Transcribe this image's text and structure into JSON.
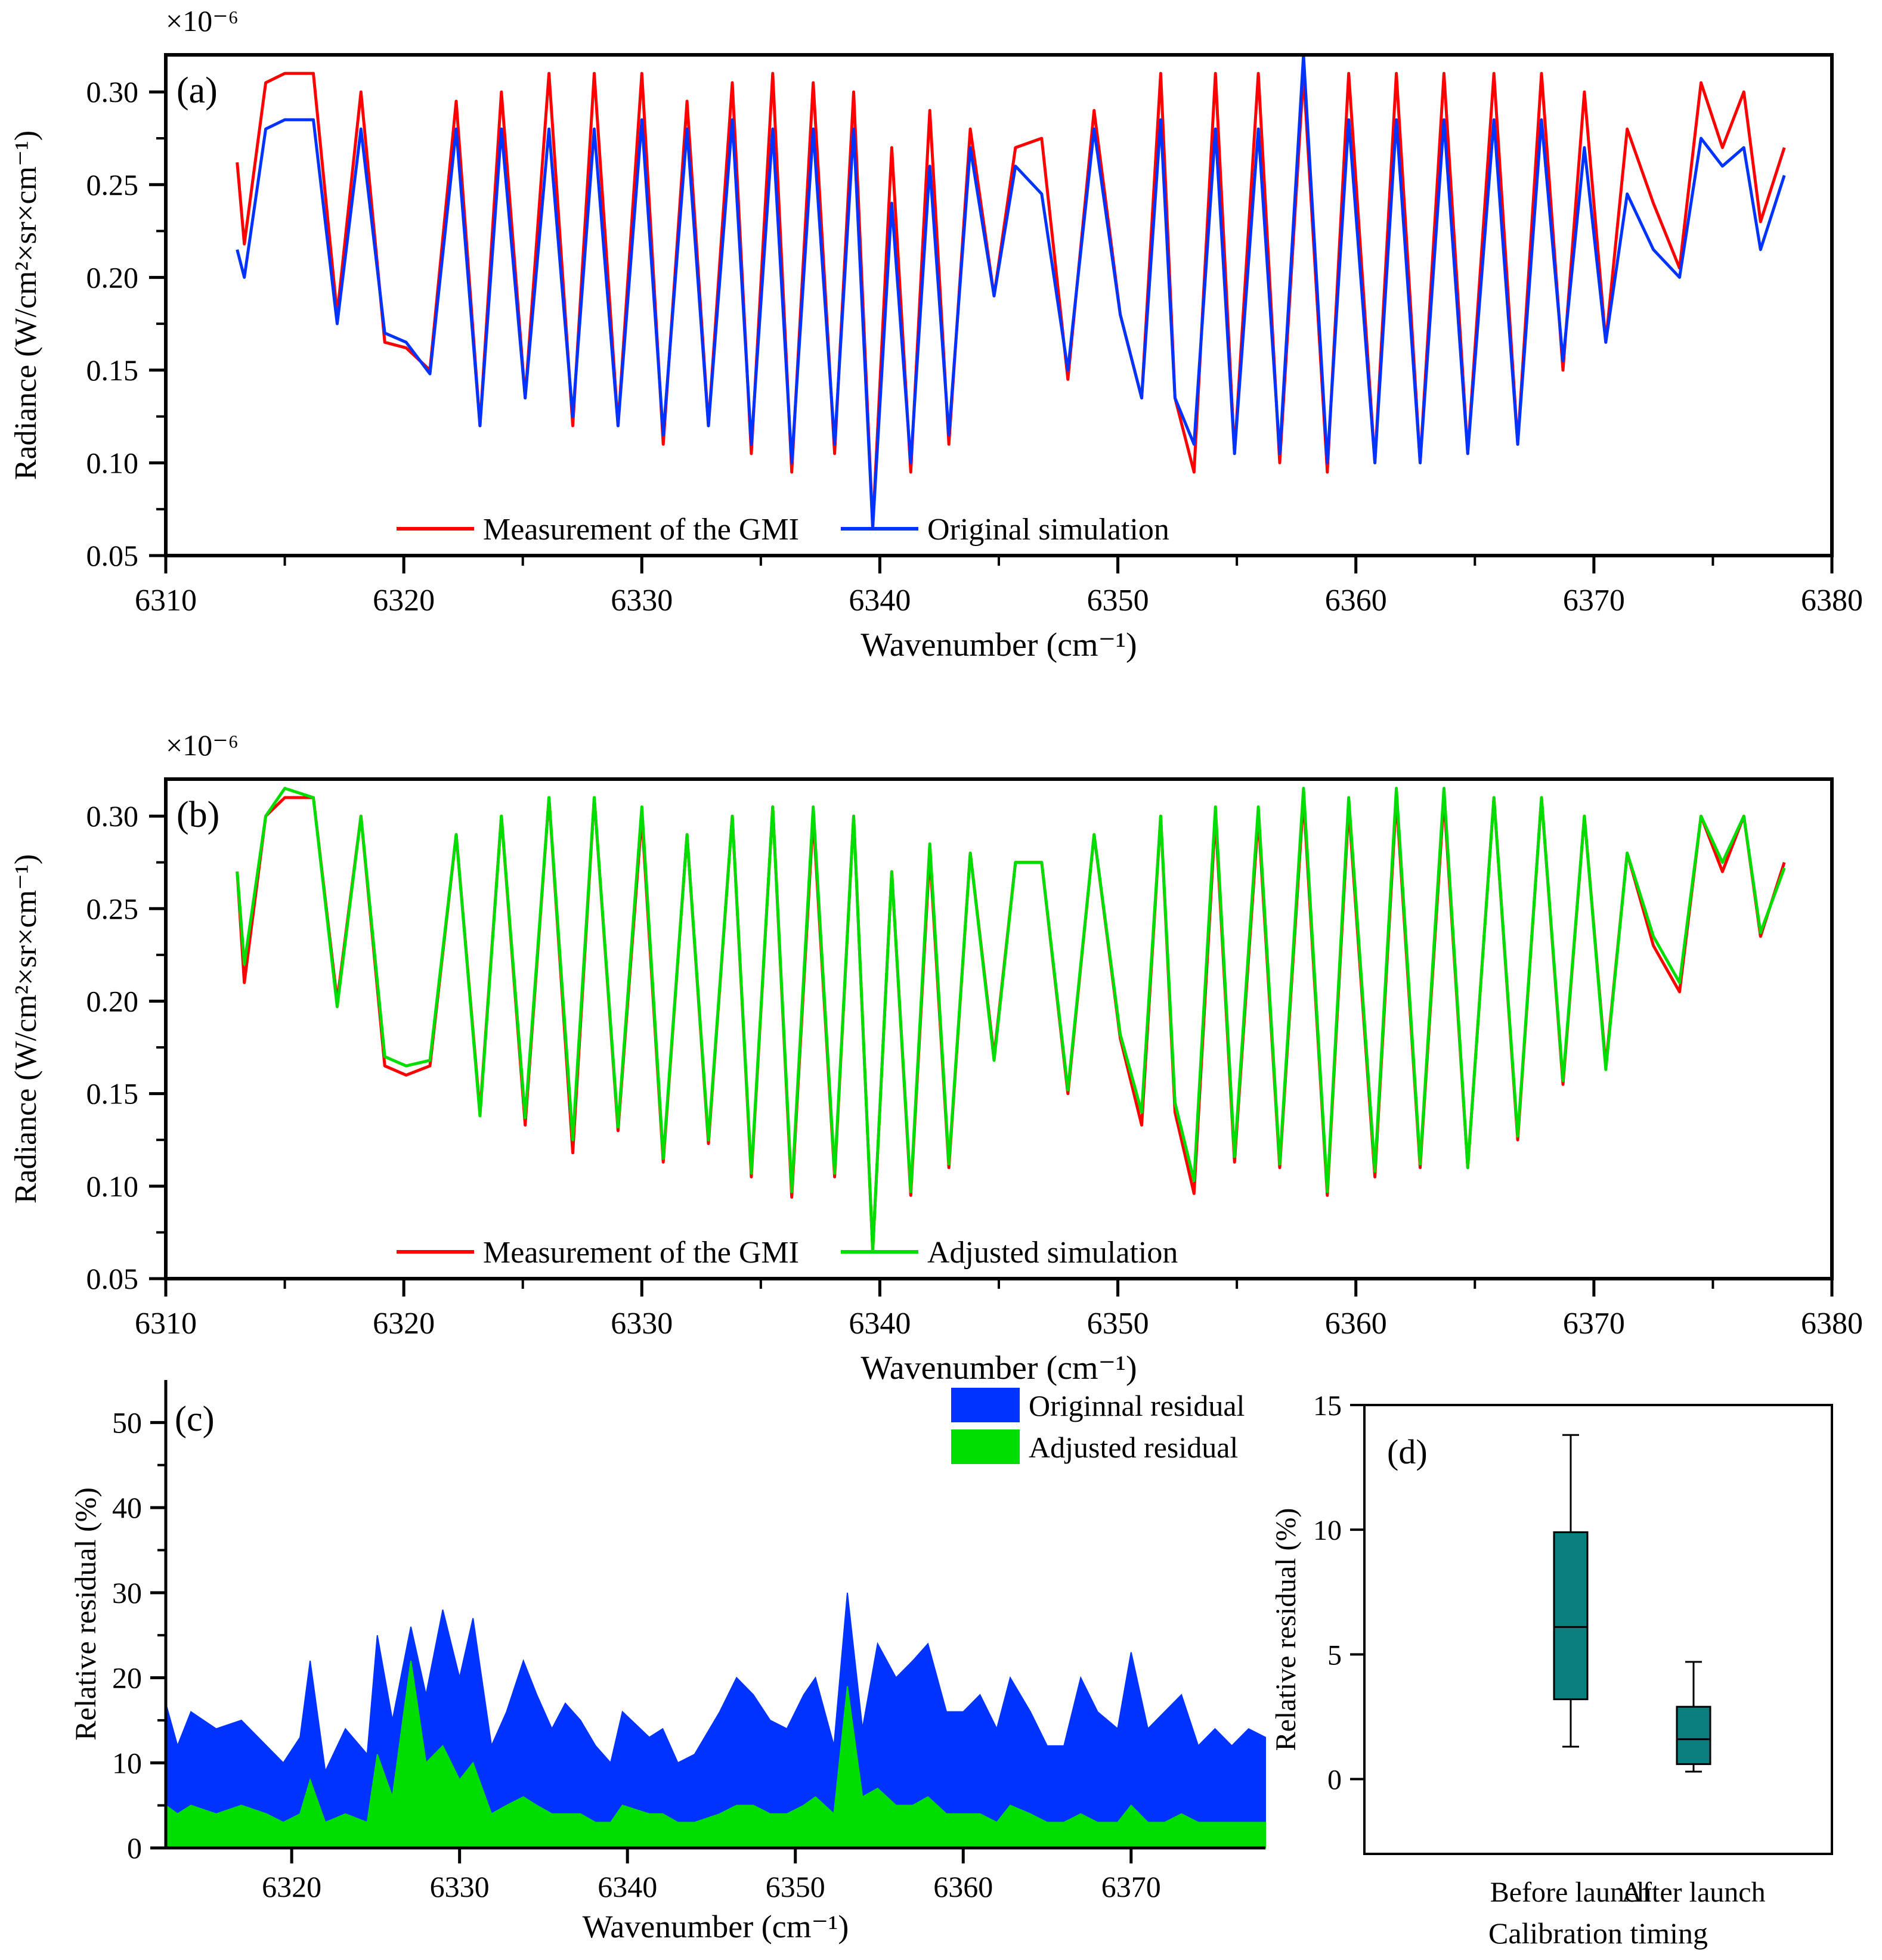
{
  "colors": {
    "measurement": "#ff0000",
    "original": "#0033ff",
    "adjusted": "#00dd00",
    "box": "#0a7f7f",
    "axis": "#000000"
  },
  "chart_data": [
    {
      "id": "a",
      "type": "line",
      "panel_label": "(a)",
      "xlabel": "Wavenumber (cm⁻¹)",
      "ylabel": "Radiance (W/cm²×sr×cm⁻¹)",
      "scale_label": "×10⁻⁶",
      "xlim": [
        6310,
        6380
      ],
      "ylim": [
        0.05,
        0.32
      ],
      "xticks": [
        6310,
        6320,
        6330,
        6340,
        6350,
        6360,
        6370,
        6380
      ],
      "yticks": [
        0.05,
        0.1,
        0.15,
        0.2,
        0.25,
        0.3
      ],
      "ytick_labels": [
        "0.05",
        "0.10",
        "0.15",
        "0.20",
        "0.25",
        "0.30"
      ],
      "legend": [
        "Measurement of the GMI",
        "Original simulation"
      ],
      "legend_position": "bottom-left",
      "series": [
        {
          "name": "Measurement of the GMI",
          "color_key": "measurement",
          "x": [
            6313.0,
            6313.3,
            6314.2,
            6315.0,
            6316.2,
            6317.2,
            6318.2,
            6319.2,
            6320.1,
            6321.1,
            6322.2,
            6323.2,
            6324.1,
            6325.1,
            6326.1,
            6327.1,
            6328.0,
            6329.0,
            6330.0,
            6330.9,
            6331.9,
            6332.8,
            6333.8,
            6334.6,
            6335.5,
            6336.3,
            6337.2,
            6338.1,
            6338.9,
            6339.7,
            6340.5,
            6341.3,
            6342.1,
            6342.9,
            6343.8,
            6344.8,
            6345.7,
            6346.8,
            6347.9,
            6349.0,
            6350.1,
            6351.0,
            6351.8,
            6352.4,
            6353.2,
            6354.1,
            6354.9,
            6355.9,
            6356.8,
            6357.8,
            6358.8,
            6359.7,
            6360.8,
            6361.7,
            6362.7,
            6363.7,
            6364.7,
            6365.8,
            6366.8,
            6367.8,
            6368.7,
            6369.6,
            6370.5,
            6371.4,
            6372.5,
            6373.6,
            6374.5,
            6375.4,
            6376.3,
            6377.0,
            6378.0
          ],
          "y": [
            0.262,
            0.218,
            0.305,
            0.31,
            0.31,
            0.18,
            0.3,
            0.165,
            0.162,
            0.15,
            0.295,
            0.12,
            0.3,
            0.135,
            0.31,
            0.12,
            0.31,
            0.12,
            0.31,
            0.11,
            0.295,
            0.12,
            0.305,
            0.105,
            0.31,
            0.095,
            0.305,
            0.105,
            0.3,
            0.065,
            0.27,
            0.095,
            0.29,
            0.11,
            0.28,
            0.19,
            0.27,
            0.275,
            0.145,
            0.29,
            0.18,
            0.135,
            0.31,
            0.135,
            0.095,
            0.31,
            0.105,
            0.31,
            0.1,
            0.31,
            0.095,
            0.31,
            0.1,
            0.31,
            0.1,
            0.31,
            0.105,
            0.31,
            0.11,
            0.31,
            0.15,
            0.3,
            0.165,
            0.28,
            0.24,
            0.205,
            0.305,
            0.27,
            0.3,
            0.23,
            0.27
          ]
        },
        {
          "name": "Original simulation",
          "color_key": "original",
          "x": [
            6313.0,
            6313.3,
            6314.2,
            6315.0,
            6316.2,
            6317.2,
            6318.2,
            6319.2,
            6320.1,
            6321.1,
            6322.2,
            6323.2,
            6324.1,
            6325.1,
            6326.1,
            6327.1,
            6328.0,
            6329.0,
            6330.0,
            6330.9,
            6331.9,
            6332.8,
            6333.8,
            6334.6,
            6335.5,
            6336.3,
            6337.2,
            6338.1,
            6338.9,
            6339.7,
            6340.5,
            6341.3,
            6342.1,
            6342.9,
            6343.8,
            6344.8,
            6345.7,
            6346.8,
            6347.9,
            6349.0,
            6350.1,
            6351.0,
            6351.8,
            6352.4,
            6353.2,
            6354.1,
            6354.9,
            6355.9,
            6356.8,
            6357.8,
            6358.8,
            6359.7,
            6360.8,
            6361.7,
            6362.7,
            6363.7,
            6364.7,
            6365.8,
            6366.8,
            6367.8,
            6368.7,
            6369.6,
            6370.5,
            6371.4,
            6372.5,
            6373.6,
            6374.5,
            6375.4,
            6376.3,
            6377.0,
            6378.0
          ],
          "y": [
            0.215,
            0.2,
            0.28,
            0.285,
            0.285,
            0.175,
            0.28,
            0.17,
            0.165,
            0.148,
            0.28,
            0.12,
            0.28,
            0.135,
            0.28,
            0.125,
            0.28,
            0.12,
            0.285,
            0.115,
            0.28,
            0.12,
            0.285,
            0.11,
            0.28,
            0.1,
            0.28,
            0.11,
            0.28,
            0.065,
            0.24,
            0.1,
            0.26,
            0.115,
            0.27,
            0.19,
            0.26,
            0.245,
            0.15,
            0.28,
            0.18,
            0.135,
            0.285,
            0.135,
            0.11,
            0.28,
            0.105,
            0.28,
            0.105,
            0.32,
            0.1,
            0.285,
            0.1,
            0.285,
            0.1,
            0.285,
            0.105,
            0.285,
            0.11,
            0.285,
            0.155,
            0.27,
            0.165,
            0.245,
            0.215,
            0.2,
            0.275,
            0.26,
            0.27,
            0.215,
            0.255
          ]
        }
      ]
    },
    {
      "id": "b",
      "type": "line",
      "panel_label": "(b)",
      "xlabel": "Wavenumber (cm⁻¹)",
      "ylabel": "Radiance (W/cm²×sr×cm⁻¹)",
      "scale_label": "×10⁻⁶",
      "xlim": [
        6310,
        6380
      ],
      "ylim": [
        0.05,
        0.32
      ],
      "xticks": [
        6310,
        6320,
        6330,
        6340,
        6350,
        6360,
        6370,
        6380
      ],
      "yticks": [
        0.05,
        0.1,
        0.15,
        0.2,
        0.25,
        0.3
      ],
      "ytick_labels": [
        "0.05",
        "0.10",
        "0.15",
        "0.20",
        "0.25",
        "0.30"
      ],
      "legend": [
        "Measurement of the GMI",
        "Adjusted simulation"
      ],
      "legend_position": "bottom-left",
      "series": [
        {
          "name": "Measurement of the GMI",
          "color_key": "measurement",
          "x": [
            6313.0,
            6313.3,
            6314.2,
            6315.0,
            6316.2,
            6317.2,
            6318.2,
            6319.2,
            6320.1,
            6321.1,
            6322.2,
            6323.2,
            6324.1,
            6325.1,
            6326.1,
            6327.1,
            6328.0,
            6329.0,
            6330.0,
            6330.9,
            6331.9,
            6332.8,
            6333.8,
            6334.6,
            6335.5,
            6336.3,
            6337.2,
            6338.1,
            6338.9,
            6339.7,
            6340.5,
            6341.3,
            6342.1,
            6342.9,
            6343.8,
            6344.8,
            6345.7,
            6346.8,
            6347.9,
            6349.0,
            6350.1,
            6351.0,
            6351.8,
            6352.4,
            6353.2,
            6354.1,
            6354.9,
            6355.9,
            6356.8,
            6357.8,
            6358.8,
            6359.7,
            6360.8,
            6361.7,
            6362.7,
            6363.7,
            6364.7,
            6365.8,
            6366.8,
            6367.8,
            6368.7,
            6369.6,
            6370.5,
            6371.4,
            6372.5,
            6373.6,
            6374.5,
            6375.4,
            6376.3,
            6377.0,
            6378.0
          ],
          "y": [
            0.27,
            0.21,
            0.3,
            0.31,
            0.31,
            0.2,
            0.3,
            0.165,
            0.16,
            0.165,
            0.29,
            0.14,
            0.3,
            0.133,
            0.31,
            0.118,
            0.31,
            0.13,
            0.3,
            0.113,
            0.29,
            0.123,
            0.3,
            0.105,
            0.305,
            0.094,
            0.3,
            0.105,
            0.3,
            0.065,
            0.27,
            0.095,
            0.28,
            0.11,
            0.28,
            0.17,
            0.275,
            0.275,
            0.15,
            0.29,
            0.18,
            0.133,
            0.3,
            0.14,
            0.096,
            0.3,
            0.113,
            0.3,
            0.11,
            0.31,
            0.095,
            0.305,
            0.105,
            0.31,
            0.11,
            0.31,
            0.11,
            0.31,
            0.125,
            0.31,
            0.155,
            0.3,
            0.165,
            0.28,
            0.23,
            0.205,
            0.3,
            0.27,
            0.3,
            0.235,
            0.275
          ]
        },
        {
          "name": "Adjusted simulation",
          "color_key": "adjusted",
          "x": [
            6313.0,
            6313.3,
            6314.2,
            6315.0,
            6316.2,
            6317.2,
            6318.2,
            6319.2,
            6320.1,
            6321.1,
            6322.2,
            6323.2,
            6324.1,
            6325.1,
            6326.1,
            6327.1,
            6328.0,
            6329.0,
            6330.0,
            6330.9,
            6331.9,
            6332.8,
            6333.8,
            6334.6,
            6335.5,
            6336.3,
            6337.2,
            6338.1,
            6338.9,
            6339.7,
            6340.5,
            6341.3,
            6342.1,
            6342.9,
            6343.8,
            6344.8,
            6345.7,
            6346.8,
            6347.9,
            6349.0,
            6350.1,
            6351.0,
            6351.8,
            6352.4,
            6353.2,
            6354.1,
            6354.9,
            6355.9,
            6356.8,
            6357.8,
            6358.8,
            6359.7,
            6360.8,
            6361.7,
            6362.7,
            6363.7,
            6364.7,
            6365.8,
            6366.8,
            6367.8,
            6368.7,
            6369.6,
            6370.5,
            6371.4,
            6372.5,
            6373.6,
            6374.5,
            6375.4,
            6376.3,
            6377.0,
            6378.0
          ],
          "y": [
            0.27,
            0.22,
            0.3,
            0.315,
            0.31,
            0.197,
            0.3,
            0.17,
            0.165,
            0.168,
            0.29,
            0.138,
            0.3,
            0.137,
            0.31,
            0.125,
            0.31,
            0.132,
            0.305,
            0.115,
            0.29,
            0.125,
            0.3,
            0.107,
            0.305,
            0.097,
            0.305,
            0.107,
            0.3,
            0.065,
            0.27,
            0.097,
            0.285,
            0.112,
            0.28,
            0.168,
            0.275,
            0.275,
            0.152,
            0.29,
            0.182,
            0.14,
            0.3,
            0.145,
            0.103,
            0.305,
            0.116,
            0.305,
            0.112,
            0.315,
            0.097,
            0.31,
            0.108,
            0.315,
            0.112,
            0.315,
            0.11,
            0.31,
            0.127,
            0.31,
            0.157,
            0.3,
            0.163,
            0.28,
            0.235,
            0.21,
            0.3,
            0.275,
            0.3,
            0.237,
            0.272
          ]
        }
      ]
    },
    {
      "id": "c",
      "type": "area",
      "panel_label": "(c)",
      "xlabel": "Wavenumber (cm⁻¹)",
      "ylabel": "Relative residual (%)",
      "xlim": [
        6312.5,
        6378
      ],
      "ylim": [
        0,
        55
      ],
      "xticks": [
        6320,
        6330,
        6340,
        6350,
        6360,
        6370
      ],
      "yticks": [
        0,
        10,
        20,
        30,
        40,
        50
      ],
      "legend": [
        "Originnal residual",
        "Adjusted residual"
      ],
      "legend_position": "top-right",
      "series": [
        {
          "name": "Originnal residual",
          "color_key": "original",
          "x": [
            6312.5,
            6313.2,
            6314.0,
            6315.5,
            6317.0,
            6318.5,
            6319.5,
            6320.5,
            6321.1,
            6322.0,
            6323.2,
            6324.5,
            6325.1,
            6326.0,
            6327.1,
            6328.0,
            6329.0,
            6330.0,
            6330.8,
            6331.9,
            6332.8,
            6333.8,
            6334.6,
            6335.5,
            6336.3,
            6337.2,
            6338.1,
            6339.0,
            6339.7,
            6341.3,
            6342.1,
            6343.0,
            6344.0,
            6345.5,
            6346.5,
            6347.5,
            6348.5,
            6349.5,
            6350.5,
            6351.2,
            6352.3,
            6353.1,
            6354.0,
            6354.9,
            6356.0,
            6357.0,
            6357.9,
            6359.0,
            6360.0,
            6361.0,
            6362.0,
            6362.8,
            6364.0,
            6365.0,
            6366.0,
            6367.0,
            6368.0,
            6369.2,
            6370.0,
            6371.0,
            6372.0,
            6373.0,
            6374.0,
            6375.0,
            6376.0,
            6377.0,
            6378.0
          ],
          "y": [
            17,
            12,
            16,
            14,
            15,
            12,
            10,
            13,
            22,
            9,
            14,
            11,
            25,
            15,
            26,
            18,
            28,
            20,
            27,
            12,
            16,
            22,
            18,
            14,
            17,
            15,
            12,
            10,
            16,
            13,
            14,
            10,
            11,
            16,
            20,
            18,
            15,
            14,
            18,
            20,
            12,
            30,
            14,
            24,
            20,
            22,
            24,
            16,
            16,
            18,
            14,
            20,
            16,
            12,
            12,
            20,
            16,
            14,
            23,
            14,
            16,
            18,
            12,
            14,
            12,
            14,
            13
          ]
        },
        {
          "name": "Adjusted residual",
          "color_key": "adjusted",
          "x": [
            6312.5,
            6313.2,
            6314.0,
            6315.5,
            6317.0,
            6318.5,
            6319.5,
            6320.5,
            6321.1,
            6322.0,
            6323.2,
            6324.5,
            6325.1,
            6326.0,
            6327.1,
            6328.0,
            6329.0,
            6330.0,
            6330.8,
            6331.9,
            6332.8,
            6333.8,
            6334.6,
            6335.5,
            6336.3,
            6337.2,
            6338.1,
            6339.0,
            6339.7,
            6341.3,
            6342.1,
            6343.0,
            6344.0,
            6345.5,
            6346.5,
            6347.5,
            6348.5,
            6349.5,
            6350.5,
            6351.2,
            6352.3,
            6353.1,
            6354.0,
            6354.9,
            6356.0,
            6357.0,
            6357.9,
            6359.0,
            6360.0,
            6361.0,
            6362.0,
            6362.8,
            6364.0,
            6365.0,
            6366.0,
            6367.0,
            6368.0,
            6369.2,
            6370.0,
            6371.0,
            6372.0,
            6373.0,
            6374.0,
            6375.0,
            6376.0,
            6377.0,
            6378.0
          ],
          "y": [
            5,
            4,
            5,
            4,
            5,
            4,
            3,
            4,
            8,
            3,
            4,
            3,
            11,
            6,
            22,
            10,
            12,
            8,
            10,
            4,
            5,
            6,
            5,
            4,
            4,
            4,
            3,
            3,
            5,
            4,
            4,
            3,
            3,
            4,
            5,
            5,
            4,
            4,
            5,
            6,
            4,
            19,
            6,
            7,
            5,
            5,
            6,
            4,
            4,
            4,
            3,
            5,
            4,
            3,
            3,
            4,
            3,
            3,
            5,
            3,
            3,
            4,
            3,
            3,
            3,
            3,
            3
          ]
        }
      ]
    },
    {
      "id": "d",
      "type": "box",
      "panel_label": "(d)",
      "xlabel": "Calibration timing",
      "ylabel": "Relative residual (%)",
      "ylim": [
        -3,
        15
      ],
      "yticks": [
        0,
        5,
        10,
        15
      ],
      "categories": [
        "Before launch",
        "After launch"
      ],
      "boxes": [
        {
          "label": "Before launch",
          "min": 1.3,
          "q1": 3.2,
          "median": 6.1,
          "q3": 9.9,
          "max": 13.8
        },
        {
          "label": "After launch",
          "min": 0.3,
          "q1": 0.6,
          "median": 1.6,
          "q3": 2.9,
          "max": 4.7
        }
      ]
    }
  ]
}
